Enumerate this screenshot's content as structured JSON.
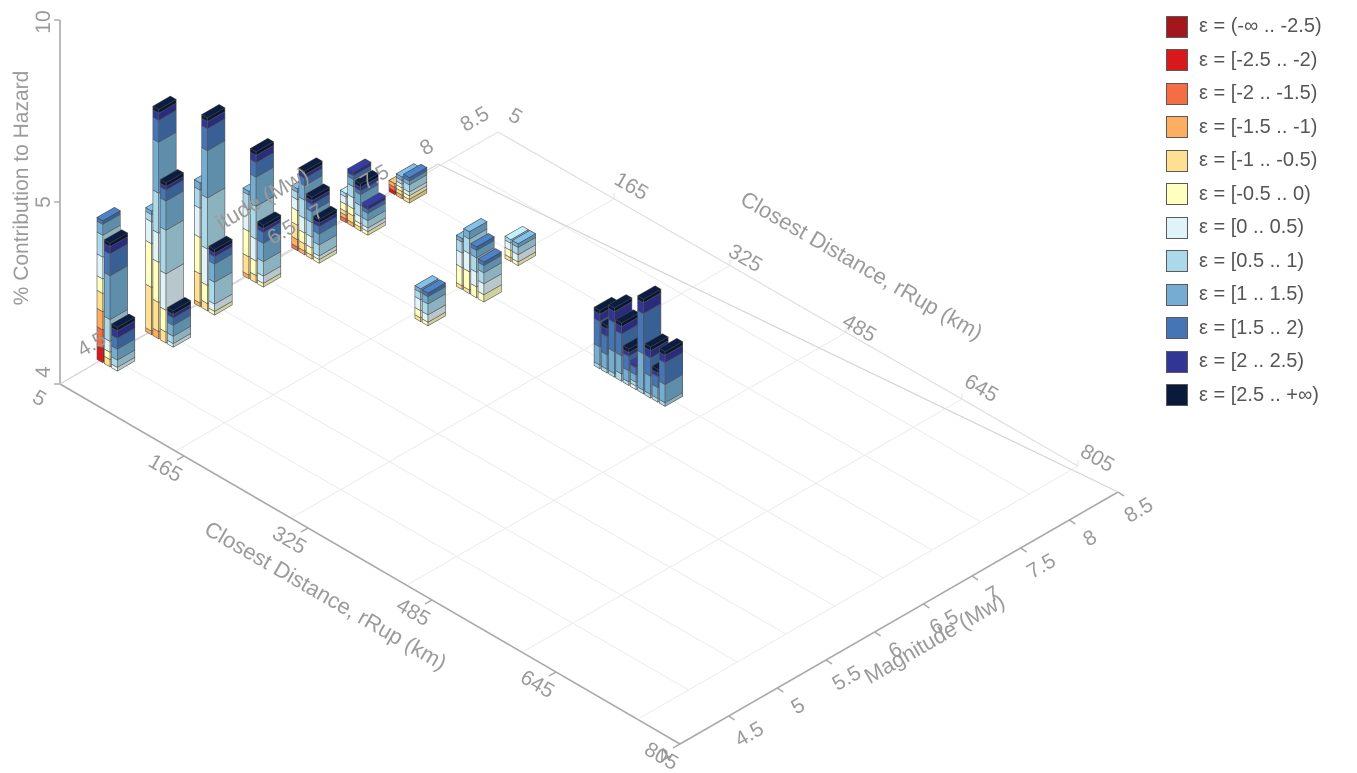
{
  "chart_data": {
    "type": "bar3d",
    "zlabel": "% Contribution to Hazard",
    "xlabel": "Closest Distance, rRup (km)",
    "ylabel": "Magnitude (Mw)",
    "zlim": [
      0,
      10
    ],
    "z_ticks": [
      "10",
      "5"
    ],
    "z_base_label": "4",
    "x_ticks": [
      "165",
      "325",
      "485",
      "645",
      "805"
    ],
    "x_start_label": "5",
    "y_ticks": [
      "4.5",
      "5",
      "5.5",
      "6",
      "6.5",
      "7",
      "7.5",
      "8",
      "8.5"
    ],
    "y_start_label": "4",
    "back_x_ticks": [
      "5",
      "165",
      "325",
      "485",
      "645",
      "805"
    ],
    "back_y_ticks": [
      "4.5",
      "6.5",
      "7",
      "7.5",
      "8",
      "8.5"
    ],
    "back_ylabel_fragment": "itude (Mw)",
    "epsilon_bins": [
      {
        "label": "ε = (-∞ .. -2.5)",
        "color": "#a3161c"
      },
      {
        "label": "ε = [-2.5 .. -2)",
        "color": "#d7191c"
      },
      {
        "label": "ε = [-2 .. -1.5)",
        "color": "#f46d43"
      },
      {
        "label": "ε = [-1.5 .. -1)",
        "color": "#fdae61"
      },
      {
        "label": "ε = [-1 .. -0.5)",
        "color": "#fee090"
      },
      {
        "label": "ε = [-0.5 .. 0)",
        "color": "#ffffbf"
      },
      {
        "label": "ε = [0 .. 0.5)",
        "color": "#e0f3f8"
      },
      {
        "label": "ε = [0.5 .. 1)",
        "color": "#abd9e9"
      },
      {
        "label": "ε = [1 .. 1.5)",
        "color": "#74add1"
      },
      {
        "label": "ε = [1.5 .. 2)",
        "color": "#4575b4"
      },
      {
        "label": "ε = [2 .. 2.5)",
        "color": "#313695"
      },
      {
        "label": "ε = [2.5 .. +∞)",
        "color": "#0a1a3a"
      }
    ],
    "bars": [
      {
        "x": 5,
        "y": 4.5,
        "stack": [
          0,
          0.4,
          0.5,
          0.5,
          0.5,
          0.4,
          0.6,
          0.6,
          0.3,
          0.1,
          0,
          0
        ]
      },
      {
        "x": 15,
        "y": 4.5,
        "stack": [
          0,
          0,
          0,
          0,
          0.2,
          0.2,
          0.3,
          0.6,
          1.2,
          0.6,
          0.2,
          0.1
        ]
      },
      {
        "x": 25,
        "y": 4.5,
        "stack": [
          0,
          0,
          0,
          0,
          0,
          0,
          0.1,
          0.2,
          0.3,
          0.3,
          0.2,
          0.1
        ]
      },
      {
        "x": 5,
        "y": 5,
        "stack": [
          0,
          0,
          0,
          0.1,
          1.2,
          1.2,
          0.6,
          0.2,
          0.1,
          0,
          0,
          0
        ]
      },
      {
        "x": 15,
        "y": 5,
        "stack": [
          0,
          0,
          0,
          0.2,
          0.8,
          1.1,
          0.8,
          1.1,
          1.4,
          0.6,
          0.2,
          0.1
        ]
      },
      {
        "x": 25,
        "y": 5,
        "stack": [
          0,
          0,
          0,
          0,
          0.3,
          0.6,
          1.0,
          1.2,
          0.8,
          0.3,
          0.1,
          0.1
        ]
      },
      {
        "x": 35,
        "y": 5,
        "stack": [
          0,
          0,
          0,
          0,
          0,
          0,
          0.1,
          0.2,
          0.3,
          0.2,
          0.1,
          0.1
        ]
      },
      {
        "x": 5,
        "y": 5.5,
        "stack": [
          0,
          0,
          0,
          0.1,
          0.8,
          1.0,
          0.8,
          0.5,
          0.2,
          0,
          0,
          0
        ]
      },
      {
        "x": 15,
        "y": 5.5,
        "stack": [
          0,
          0,
          0,
          0,
          0.2,
          0.5,
          1.0,
          1.4,
          1.3,
          0.6,
          0.2,
          0.1
        ]
      },
      {
        "x": 25,
        "y": 5.5,
        "stack": [
          0,
          0,
          0,
          0,
          0,
          0.1,
          0.2,
          0.6,
          0.5,
          0.2,
          0.1,
          0.1
        ]
      },
      {
        "x": 5,
        "y": 6,
        "stack": [
          0,
          0,
          0,
          0.1,
          0.5,
          0.7,
          0.6,
          0.4,
          0.1,
          0,
          0,
          0
        ]
      },
      {
        "x": 15,
        "y": 6,
        "stack": [
          0,
          0,
          0,
          0,
          0.2,
          0.4,
          0.6,
          0.9,
          0.8,
          0.4,
          0.2,
          0.1
        ]
      },
      {
        "x": 25,
        "y": 6,
        "stack": [
          0,
          0,
          0,
          0,
          0,
          0.1,
          0.2,
          0.4,
          0.5,
          0.3,
          0.1,
          0.1
        ]
      },
      {
        "x": 5,
        "y": 6.5,
        "stack": [
          0,
          0,
          0.1,
          0.2,
          0.4,
          0.4,
          0.3,
          0.2,
          0.1,
          0,
          0,
          0
        ]
      },
      {
        "x": 15,
        "y": 6.5,
        "stack": [
          0,
          0,
          0,
          0.1,
          0.2,
          0.3,
          0.4,
          0.5,
          0.4,
          0.2,
          0.1,
          0.1
        ]
      },
      {
        "x": 25,
        "y": 6.5,
        "stack": [
          0,
          0,
          0,
          0,
          0.1,
          0.2,
          0.3,
          0.4,
          0.3,
          0.2,
          0.1,
          0.1
        ]
      },
      {
        "x": 35,
        "y": 6.5,
        "stack": [
          0,
          0,
          0,
          0,
          0,
          0.1,
          0.1,
          0.3,
          0.3,
          0.2,
          0.1,
          0.1
        ]
      },
      {
        "x": 5,
        "y": 7,
        "stack": [
          0,
          0,
          0.1,
          0.1,
          0.1,
          0.2,
          0.2,
          0.1,
          0,
          0,
          0,
          0
        ]
      },
      {
        "x": 15,
        "y": 7,
        "stack": [
          0,
          0,
          0,
          0.1,
          0.2,
          0.2,
          0.3,
          0.3,
          0.2,
          0.1,
          0.1,
          0
        ]
      },
      {
        "x": 25,
        "y": 7,
        "stack": [
          0,
          0,
          0,
          0,
          0.1,
          0.1,
          0.2,
          0.3,
          0.3,
          0.1,
          0.1,
          0.1
        ]
      },
      {
        "x": 35,
        "y": 7,
        "stack": [
          0,
          0,
          0,
          0,
          0,
          0.1,
          0.1,
          0.2,
          0.2,
          0.1,
          0.1,
          0
        ]
      },
      {
        "x": 5,
        "y": 7.5,
        "stack": [
          0,
          0.1,
          0.1,
          0.1,
          0,
          0,
          0,
          0,
          0,
          0,
          0,
          0
        ]
      },
      {
        "x": 15,
        "y": 7.5,
        "stack": [
          0,
          0,
          0,
          0.1,
          0.1,
          0.1,
          0.1,
          0.1,
          0.1,
          0,
          0,
          0
        ]
      },
      {
        "x": 25,
        "y": 7.5,
        "stack": [
          0,
          0,
          0,
          0,
          0.1,
          0.1,
          0.1,
          0.2,
          0.1,
          0.1,
          0,
          0
        ]
      },
      {
        "x": 165,
        "y": 7,
        "stack": [
          0,
          0,
          0,
          0,
          0.1,
          0.5,
          0.4,
          0.3,
          0.1,
          0,
          0,
          0
        ]
      },
      {
        "x": 175,
        "y": 7,
        "stack": [
          0,
          0,
          0,
          0,
          0.1,
          0.5,
          0.5,
          0.4,
          0.2,
          0,
          0,
          0
        ]
      },
      {
        "x": 185,
        "y": 7,
        "stack": [
          0,
          0,
          0,
          0,
          0,
          0.3,
          0.4,
          0.4,
          0.2,
          0.1,
          0,
          0
        ]
      },
      {
        "x": 195,
        "y": 7,
        "stack": [
          0,
          0,
          0,
          0,
          0,
          0.2,
          0.3,
          0.3,
          0.2,
          0.1,
          0,
          0
        ]
      },
      {
        "x": 165,
        "y": 7.5,
        "stack": [
          0,
          0,
          0,
          0,
          0.1,
          0.2,
          0.2,
          0.1,
          0,
          0,
          0,
          0
        ]
      },
      {
        "x": 175,
        "y": 7.5,
        "stack": [
          0,
          0,
          0,
          0,
          0,
          0.1,
          0.2,
          0.2,
          0.1,
          0,
          0,
          0
        ]
      },
      {
        "x": 175,
        "y": 6.5,
        "stack": [
          0,
          0,
          0,
          0,
          0.1,
          0.2,
          0.3,
          0.2,
          0.1,
          0,
          0,
          0
        ]
      },
      {
        "x": 185,
        "y": 6.5,
        "stack": [
          0,
          0,
          0,
          0,
          0,
          0.1,
          0.2,
          0.3,
          0.2,
          0.1,
          0,
          0
        ]
      },
      {
        "x": 355,
        "y": 7,
        "stack": [
          0,
          0,
          0,
          0,
          0,
          0,
          0,
          0.1,
          0.5,
          0.7,
          0.2,
          0.1
        ]
      },
      {
        "x": 365,
        "y": 7,
        "stack": [
          0,
          0,
          0,
          0,
          0,
          0,
          0,
          0.1,
          0.4,
          0.5,
          0.2,
          0.1
        ]
      },
      {
        "x": 375,
        "y": 7,
        "stack": [
          0,
          0,
          0,
          0,
          0,
          0,
          0,
          0.1,
          0.6,
          0.8,
          0.3,
          0.1
        ]
      },
      {
        "x": 385,
        "y": 7,
        "stack": [
          0,
          0,
          0,
          0,
          0,
          0,
          0,
          0.2,
          0.5,
          0.6,
          0.2,
          0.1
        ]
      },
      {
        "x": 395,
        "y": 7,
        "stack": [
          0,
          0,
          0,
          0,
          0,
          0,
          0,
          0.1,
          0.3,
          0.4,
          0.1,
          0.1
        ]
      },
      {
        "x": 405,
        "y": 7,
        "stack": [
          0,
          0,
          0,
          0,
          0,
          0,
          0.1,
          0.1,
          0.2,
          0.2,
          0.1,
          0
        ]
      },
      {
        "x": 415,
        "y": 7,
        "stack": [
          0,
          0,
          0,
          0,
          0,
          0,
          0,
          0.1,
          1.0,
          1.1,
          0.3,
          0.1
        ]
      },
      {
        "x": 425,
        "y": 7,
        "stack": [
          0,
          0,
          0,
          0,
          0,
          0,
          0,
          0.1,
          0.5,
          0.5,
          0.2,
          0.1
        ]
      },
      {
        "x": 435,
        "y": 7,
        "stack": [
          0,
          0,
          0,
          0,
          0,
          0,
          0,
          0.1,
          0.3,
          0.3,
          0.1,
          0.1
        ]
      },
      {
        "x": 445,
        "y": 7,
        "stack": [
          0,
          0,
          0,
          0,
          0,
          0,
          0,
          0.1,
          0.5,
          0.6,
          0.2,
          0.1
        ]
      }
    ]
  }
}
